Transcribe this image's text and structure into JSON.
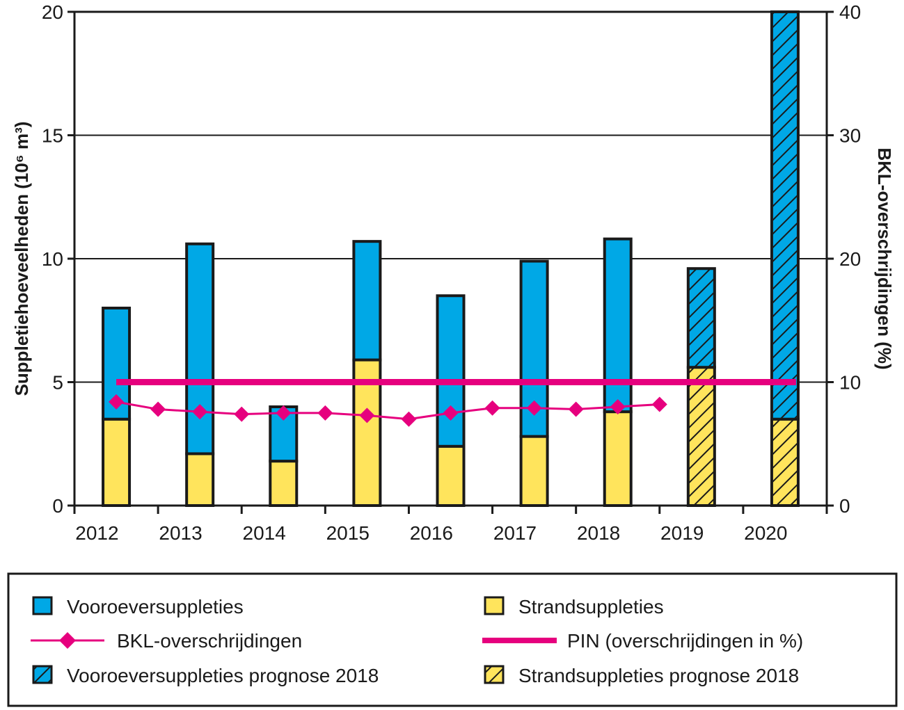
{
  "colors": {
    "vooroever": "#00a8e6",
    "strand": "#ffe45c",
    "bkl": "#e6007e",
    "pin": "#e6007e",
    "outline": "#1a1a1a"
  },
  "chart_data": {
    "type": "bar",
    "stacked": true,
    "categories": [
      "2012",
      "2013",
      "2014",
      "2015",
      "2016",
      "2017",
      "2018",
      "2019",
      "2020"
    ],
    "ylabel": "Suppletiehoeveelheden (10⁶ m³)",
    "y2label": "BKL-overschrijdingen (%)",
    "ylim": [
      0,
      20
    ],
    "y2lim": [
      0,
      40
    ],
    "yticks": [
      "0",
      "5",
      "10",
      "15",
      "20"
    ],
    "y2ticks": [
      "0",
      "10",
      "20",
      "30",
      "40"
    ],
    "grid": true,
    "legend_position": "bottom",
    "series": [
      {
        "name": "Strandsuppleties",
        "values": [
          3.5,
          2.1,
          1.8,
          5.9,
          2.4,
          2.8,
          3.8,
          null,
          null
        ]
      },
      {
        "name": "Vooroeversuppleties",
        "values": [
          4.5,
          8.5,
          2.2,
          4.8,
          6.1,
          7.1,
          7.0,
          null,
          null
        ]
      },
      {
        "name": "Strandsuppleties prognose 2018",
        "values": [
          null,
          null,
          null,
          null,
          null,
          null,
          null,
          5.6,
          3.5
        ]
      },
      {
        "name": "Vooroeversuppleties prognose 2018",
        "values": [
          null,
          null,
          null,
          null,
          null,
          null,
          null,
          4.0,
          16.5
        ]
      }
    ],
    "bkl": {
      "name": "BKL-overschrijdingen",
      "x": [
        2012,
        2012.5,
        2013,
        2013.5,
        2014,
        2014.5,
        2015,
        2015.5,
        2016,
        2016.5,
        2017,
        2017.5,
        2018,
        2018.5
      ],
      "values": [
        8.4,
        7.8,
        7.6,
        7.4,
        7.5,
        7.5,
        7.3,
        7.0,
        7.5,
        7.9,
        7.9,
        7.8,
        8.0,
        8.2
      ]
    },
    "pin": {
      "name": "PIN (overschrijdingen in %)",
      "value": 10
    }
  },
  "legend": [
    {
      "key": "vooroever",
      "label": "Vooroeversuppleties"
    },
    {
      "key": "strand",
      "label": "Strandsuppleties"
    },
    {
      "key": "bkl",
      "label": "BKL-overschrijdingen"
    },
    {
      "key": "pin",
      "label": "PIN (overschrijdingen in %)"
    },
    {
      "key": "vooroever_prognose",
      "label": "Vooroeversuppleties prognose 2018"
    },
    {
      "key": "strand_prognose",
      "label": "Strandsuppleties prognose 2018"
    }
  ]
}
